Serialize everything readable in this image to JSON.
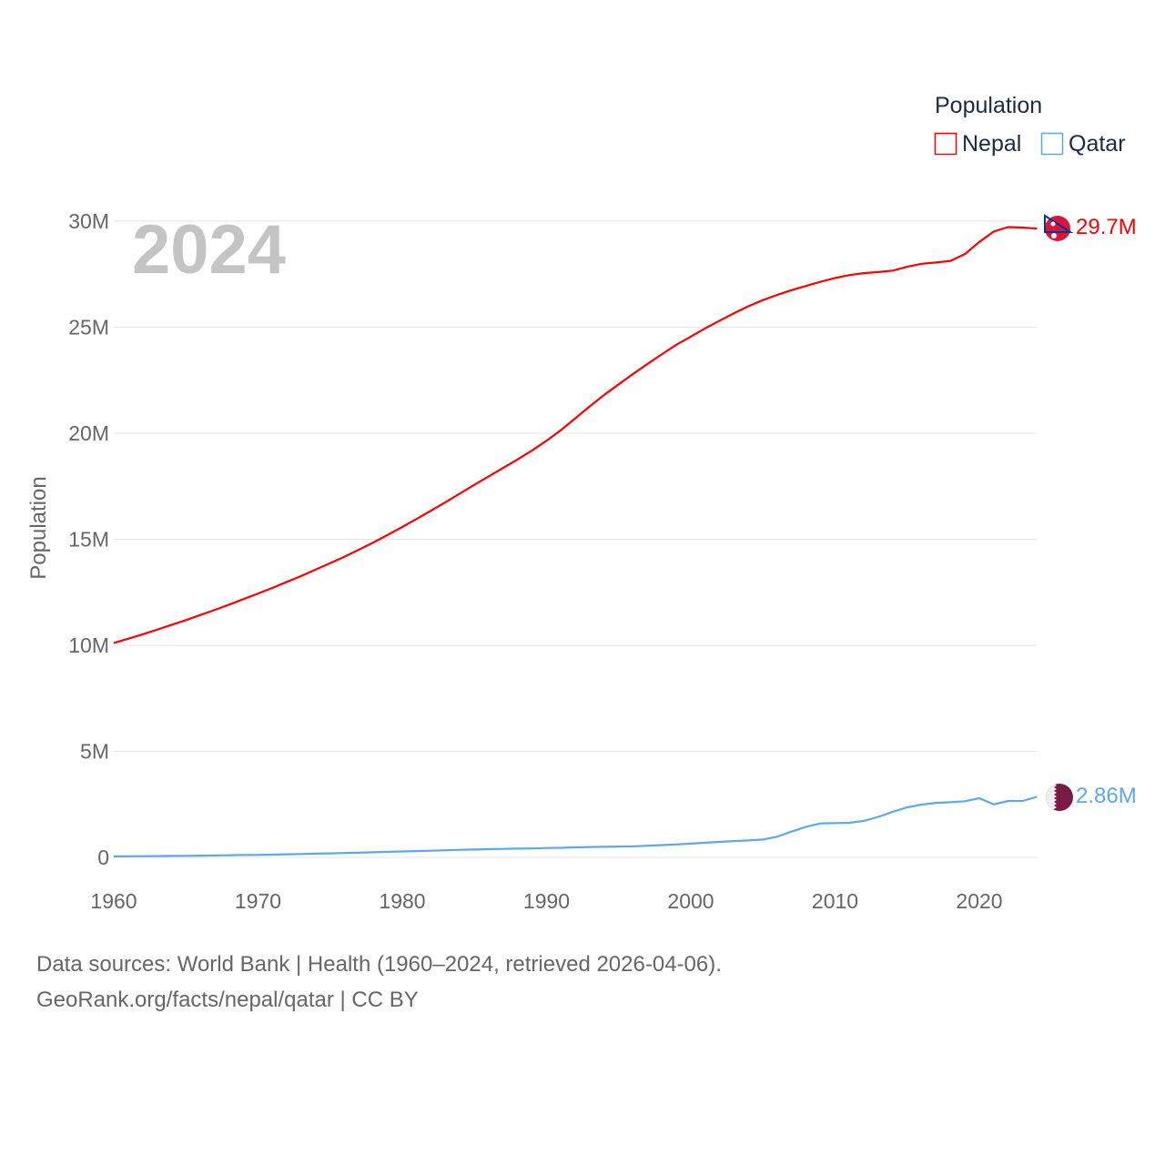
{
  "chart_data": {
    "type": "line",
    "ylabel": "Population",
    "year_label": "2024",
    "legend": {
      "title": "Population",
      "placement": "top-right"
    },
    "xlim": [
      1960,
      2024
    ],
    "ylim": [
      0,
      30000000
    ],
    "x_ticks": [
      "1960",
      "1970",
      "1980",
      "1990",
      "2000",
      "2010",
      "2020"
    ],
    "x_tick_values": [
      1960,
      1970,
      1980,
      1990,
      2000,
      2010,
      2020
    ],
    "y_ticks": [
      "0",
      "5M",
      "10M",
      "15M",
      "20M",
      "25M",
      "30M"
    ],
    "y_tick_values": [
      0,
      5000000,
      10000000,
      15000000,
      20000000,
      25000000,
      30000000
    ],
    "grid": true,
    "x_start": 1960,
    "series": [
      {
        "name": "Nepal",
        "color": "#ff0000",
        "flag": "nepal-flag",
        "end_label": "29.7M",
        "values_millions": [
          10.11,
          10.31,
          10.52,
          10.74,
          10.96,
          11.19,
          11.43,
          11.67,
          11.92,
          12.18,
          12.44,
          12.71,
          12.99,
          13.27,
          13.57,
          13.87,
          14.18,
          14.51,
          14.85,
          15.21,
          15.58,
          15.96,
          16.35,
          16.75,
          17.16,
          17.57,
          17.97,
          18.37,
          18.77,
          19.19,
          19.65,
          20.15,
          20.71,
          21.27,
          21.81,
          22.31,
          22.8,
          23.27,
          23.73,
          24.17,
          24.56,
          24.95,
          25.31,
          25.66,
          25.99,
          26.28,
          26.53,
          26.75,
          26.95,
          27.14,
          27.32,
          27.46,
          27.55,
          27.6,
          27.67,
          27.85,
          27.99,
          28.05,
          28.13,
          28.45,
          29.02,
          29.51,
          29.72,
          29.7,
          29.65
        ]
      },
      {
        "name": "Qatar",
        "color": "#5ea8ea",
        "flag": "qatar-flag",
        "end_label": "2.86M",
        "values_millions": [
          0.047,
          0.052,
          0.057,
          0.062,
          0.068,
          0.075,
          0.083,
          0.091,
          0.1,
          0.11,
          0.117,
          0.13,
          0.145,
          0.16,
          0.175,
          0.19,
          0.205,
          0.22,
          0.24,
          0.26,
          0.277,
          0.295,
          0.315,
          0.335,
          0.355,
          0.37,
          0.385,
          0.4,
          0.41,
          0.42,
          0.44,
          0.45,
          0.47,
          0.49,
          0.5,
          0.51,
          0.52,
          0.55,
          0.58,
          0.61,
          0.65,
          0.69,
          0.73,
          0.77,
          0.8,
          0.84,
          0.98,
          1.22,
          1.44,
          1.6,
          1.62,
          1.63,
          1.72,
          1.91,
          2.15,
          2.36,
          2.49,
          2.57,
          2.6,
          2.65,
          2.79,
          2.5,
          2.66,
          2.66,
          2.86
        ]
      }
    ]
  },
  "footer": {
    "sources": "Data sources: World Bank | Health (1960–2024, retrieved 2026-04-06).",
    "credit": "GeoRank.org/facts/nepal/qatar | CC BY"
  }
}
